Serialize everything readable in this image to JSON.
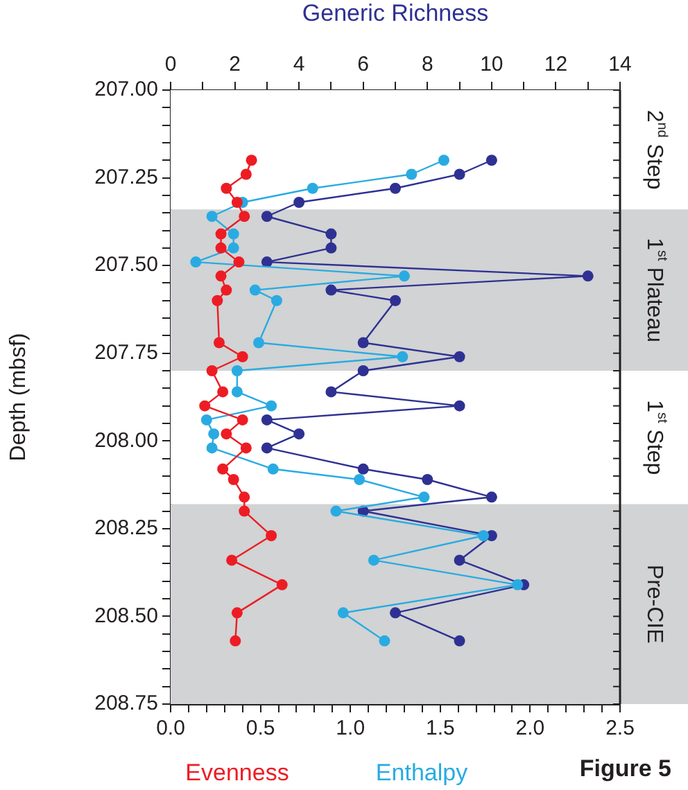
{
  "chart_data": {
    "type": "line",
    "ylabel": "Depth (mbsf)",
    "x2label": "Generic Richness",
    "xlim": [
      0,
      2.5
    ],
    "xticks": [
      {
        "value": 0,
        "label": "0.0"
      },
      {
        "value": 0.1,
        "label": null
      },
      {
        "value": 0.2,
        "label": null
      },
      {
        "value": 0.3,
        "label": null
      },
      {
        "value": 0.4,
        "label": null
      },
      {
        "value": 0.5,
        "label": "0.5"
      },
      {
        "value": 0.6,
        "label": null
      },
      {
        "value": 0.7,
        "label": null
      },
      {
        "value": 0.8,
        "label": null
      },
      {
        "value": 0.9,
        "label": null
      },
      {
        "value": 1,
        "label": "1.0"
      },
      {
        "value": 1.1,
        "label": null
      },
      {
        "value": 1.2,
        "label": null
      },
      {
        "value": 1.3,
        "label": null
      },
      {
        "value": 1.4,
        "label": null
      },
      {
        "value": 1.5,
        "label": "1.5"
      },
      {
        "value": 1.6,
        "label": null
      },
      {
        "value": 1.7,
        "label": null
      },
      {
        "value": 1.8,
        "label": null
      },
      {
        "value": 1.9,
        "label": null
      },
      {
        "value": 2,
        "label": "2.0"
      },
      {
        "value": 2.1,
        "label": null
      },
      {
        "value": 2.2,
        "label": null
      },
      {
        "value": 2.3,
        "label": null
      },
      {
        "value": 2.4,
        "label": null
      },
      {
        "value": 2.5,
        "label": "2.5"
      }
    ],
    "x2lim": [
      0,
      14
    ],
    "x2ticks": [
      0,
      {
        "value": 1,
        "label": null
      },
      2,
      {
        "value": 3,
        "label": null
      },
      4,
      {
        "value": 5,
        "label": null
      },
      6,
      {
        "value": 7,
        "label": null
      },
      8,
      {
        "value": 9,
        "label": null
      },
      10,
      {
        "value": 11,
        "label": null
      },
      12,
      {
        "value": 13,
        "label": null
      },
      14
    ],
    "ylim": [
      208.75,
      207.0
    ],
    "yticks": [
      {
        "value": 207,
        "label": "207.00"
      },
      {
        "value": 207.05,
        "label": null
      },
      {
        "value": 207.1,
        "label": null
      },
      {
        "value": 207.15,
        "label": null
      },
      {
        "value": 207.2,
        "label": null
      },
      {
        "value": 207.25,
        "label": "207.25"
      },
      {
        "value": 207.3,
        "label": null
      },
      {
        "value": 207.35,
        "label": null
      },
      {
        "value": 207.4,
        "label": null
      },
      {
        "value": 207.45,
        "label": null
      },
      {
        "value": 207.5,
        "label": "207.50"
      },
      {
        "value": 207.55,
        "label": null
      },
      {
        "value": 207.6,
        "label": null
      },
      {
        "value": 207.65,
        "label": null
      },
      {
        "value": 207.7,
        "label": null
      },
      {
        "value": 207.75,
        "label": "207.75"
      },
      {
        "value": 207.8,
        "label": null
      },
      {
        "value": 207.85,
        "label": null
      },
      {
        "value": 207.9,
        "label": null
      },
      {
        "value": 207.95,
        "label": null
      },
      {
        "value": 208,
        "label": "208.00"
      },
      {
        "value": 208.05,
        "label": null
      },
      {
        "value": 208.1,
        "label": null
      },
      {
        "value": 208.15,
        "label": null
      },
      {
        "value": 208.2,
        "label": null
      },
      {
        "value": 208.25,
        "label": "208.25"
      },
      {
        "value": 208.3,
        "label": null
      },
      {
        "value": 208.35,
        "label": null
      },
      {
        "value": 208.4,
        "label": null
      },
      {
        "value": 208.45,
        "label": null
      },
      {
        "value": 208.5,
        "label": "208.50"
      },
      {
        "value": 208.55,
        "label": null
      },
      {
        "value": 208.6,
        "label": null
      },
      {
        "value": 208.65,
        "label": null
      },
      {
        "value": 208.7,
        "label": null
      },
      {
        "value": 208.75,
        "label": "208.75"
      }
    ],
    "grid": false,
    "legend": "bottom",
    "marker": "circle",
    "line_style": "solid",
    "series": [
      {
        "name": "Evenness",
        "color": "#ed1c24",
        "x": [
          0.45,
          0.42,
          0.31,
          0.37,
          0.41,
          0.28,
          0.28,
          0.38,
          0.28,
          0.31,
          0.26,
          0.27,
          0.4,
          0.23,
          0.29,
          0.19,
          0.4,
          0.31,
          0.42,
          0.29,
          0.35,
          0.41,
          0.41,
          0.56,
          0.34,
          0.62,
          0.37,
          0.36
        ],
        "values": [
          207.2,
          207.24,
          207.28,
          207.32,
          207.36,
          207.41,
          207.45,
          207.49,
          207.53,
          207.57,
          207.6,
          207.72,
          207.76,
          207.8,
          207.86,
          207.9,
          207.94,
          207.98,
          208.02,
          208.08,
          208.11,
          208.16,
          208.2,
          208.27,
          208.34,
          208.41,
          208.49,
          208.57
        ]
      },
      {
        "name": "Enthalpy",
        "color": "#29abe2",
        "x": [
          1.52,
          1.34,
          0.79,
          0.4,
          0.23,
          0.35,
          0.35,
          0.14,
          1.3,
          0.47,
          0.59,
          0.49,
          1.29,
          0.37,
          0.37,
          0.56,
          0.2,
          0.24,
          0.23,
          0.57,
          1.05,
          1.41,
          0.92,
          1.74,
          1.13,
          1.93,
          0.96,
          1.19
        ],
        "values": [
          207.2,
          207.24,
          207.28,
          207.32,
          207.36,
          207.41,
          207.45,
          207.49,
          207.53,
          207.57,
          207.6,
          207.72,
          207.76,
          207.8,
          207.86,
          207.9,
          207.94,
          207.98,
          208.02,
          208.08,
          208.11,
          208.16,
          208.2,
          208.27,
          208.34,
          208.41,
          208.49,
          208.57
        ]
      },
      {
        "color": "#2e3192",
        "axis": "x2",
        "x": [
          10,
          9,
          7,
          4,
          3,
          5,
          5,
          3,
          13,
          5,
          7,
          6,
          9,
          6,
          5,
          9,
          3,
          4,
          3,
          6,
          8,
          10,
          6,
          10,
          9,
          11,
          7,
          9
        ],
        "values": [
          207.2,
          207.24,
          207.28,
          207.32,
          207.36,
          207.41,
          207.45,
          207.49,
          207.53,
          207.57,
          207.6,
          207.72,
          207.76,
          207.8,
          207.86,
          207.9,
          207.94,
          207.98,
          208.02,
          208.08,
          208.11,
          208.16,
          208.2,
          208.27,
          208.34,
          208.41,
          208.49,
          208.57
        ]
      }
    ],
    "bands": [
      {
        "axis": "y",
        "from": 207.0,
        "to": 207.34,
        "label": "2$^{nd}$ Step",
        "color": "#ffffff"
      },
      {
        "axis": "y",
        "from": 207.34,
        "to": 207.8,
        "label": "1$^{st}$ Plateau",
        "color": "#d1d3d4"
      },
      {
        "axis": "y",
        "from": 207.8,
        "to": 208.18,
        "label": "1$^{st}$ Step",
        "color": "#ffffff"
      },
      {
        "axis": "y",
        "from": 208.18,
        "to": 208.75,
        "label": "Pre-CIE",
        "color": "#d1d3d4"
      }
    ],
    "annotations": [
      "Figure 5"
    ]
  }
}
